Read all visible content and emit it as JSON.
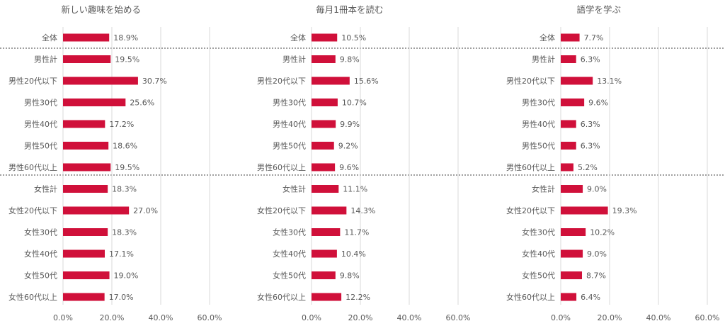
{
  "chart_data": [
    {
      "type": "bar",
      "orientation": "horizontal",
      "title": "新しい趣味を始める",
      "categories": [
        "全体",
        "男性計",
        "男性20代以下",
        "男性30代",
        "男性40代",
        "男性50代",
        "男性60代以上",
        "女性計",
        "女性20代以下",
        "女性30代",
        "女性40代",
        "女性50代",
        "女性60代以上"
      ],
      "values": [
        18.9,
        19.5,
        30.7,
        25.6,
        17.2,
        18.6,
        19.5,
        18.3,
        27.0,
        18.3,
        17.1,
        19.0,
        17.0
      ],
      "value_labels": [
        "18.9%",
        "19.5%",
        "30.7%",
        "25.6%",
        "17.2%",
        "18.6%",
        "19.5%",
        "18.3%",
        "27.0%",
        "18.3%",
        "17.1%",
        "19.0%",
        "17.0%"
      ],
      "xlim": [
        0,
        60
      ],
      "xticks": [
        "0.0%",
        "20.0%",
        "40.0%",
        "60.0%"
      ],
      "grid": true,
      "color": "#d0103a"
    },
    {
      "type": "bar",
      "orientation": "horizontal",
      "title": "毎月1冊本を読む",
      "categories": [
        "全体",
        "男性計",
        "男性20代以下",
        "男性30代",
        "男性40代",
        "男性50代",
        "男性60代以上",
        "女性計",
        "女性20代以下",
        "女性30代",
        "女性40代",
        "女性50代",
        "女性60代以上"
      ],
      "values": [
        10.5,
        9.8,
        15.6,
        10.7,
        9.9,
        9.2,
        9.6,
        11.1,
        14.3,
        11.7,
        10.4,
        9.8,
        12.2
      ],
      "value_labels": [
        "10.5%",
        "9.8%",
        "15.6%",
        "10.7%",
        "9.9%",
        "9.2%",
        "9.6%",
        "11.1%",
        "14.3%",
        "11.7%",
        "10.4%",
        "9.8%",
        "12.2%"
      ],
      "xlim": [
        0,
        60
      ],
      "xticks": [
        "0.0%",
        "20.0%",
        "40.0%",
        "60.0%"
      ],
      "grid": true,
      "color": "#d0103a"
    },
    {
      "type": "bar",
      "orientation": "horizontal",
      "title": "語学を学ぶ",
      "categories": [
        "全体",
        "男性計",
        "男性20代以下",
        "男性30代",
        "男性40代",
        "男性50代",
        "男性60代以上",
        "女性計",
        "女性20代以下",
        "女性30代",
        "女性40代",
        "女性50代",
        "女性60代以上"
      ],
      "values": [
        7.7,
        6.3,
        13.1,
        9.6,
        6.3,
        6.3,
        5.2,
        9.0,
        19.3,
        10.2,
        9.0,
        8.7,
        6.4
      ],
      "value_labels": [
        "7.7%",
        "6.3%",
        "13.1%",
        "9.6%",
        "6.3%",
        "6.3%",
        "5.2%",
        "9.0%",
        "19.3%",
        "10.2%",
        "9.0%",
        "8.7%",
        "6.4%"
      ],
      "xlim": [
        0,
        60
      ],
      "xticks": [
        "0.0%",
        "20.0%",
        "40.0%",
        "60.0%"
      ],
      "grid": true,
      "color": "#d0103a"
    }
  ],
  "colors": {
    "bar": "#d0103a",
    "text": "#595959",
    "grid": "#d9d9d9",
    "divider": "#404040"
  }
}
